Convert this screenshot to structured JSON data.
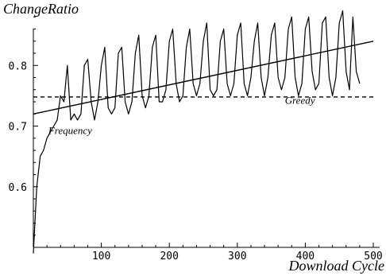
{
  "chart_data": {
    "type": "line",
    "ylabel": "ChangeRatio",
    "xlabel": "Download Cycle",
    "xlim": [
      0,
      500
    ],
    "ylim": [
      0.5,
      0.9
    ],
    "x_ticks": [
      100,
      200,
      300,
      400,
      500
    ],
    "y_ticks": [
      0.6,
      0.7,
      0.8
    ],
    "x_tick_labels": [
      "100",
      "200",
      "300",
      "400",
      "500"
    ],
    "y_tick_labels": [
      "0.6",
      "0.7",
      "0.8"
    ],
    "grid": false,
    "series": [
      {
        "name": "Frequency",
        "style": "solid",
        "color": "#000000",
        "sample_step": 5,
        "x_start": 0,
        "values": [
          0.49,
          0.6,
          0.65,
          0.66,
          0.68,
          0.69,
          0.7,
          0.71,
          0.75,
          0.74,
          0.8,
          0.71,
          0.72,
          0.71,
          0.72,
          0.8,
          0.81,
          0.74,
          0.71,
          0.74,
          0.8,
          0.83,
          0.73,
          0.72,
          0.73,
          0.82,
          0.83,
          0.74,
          0.72,
          0.74,
          0.82,
          0.85,
          0.75,
          0.73,
          0.75,
          0.83,
          0.85,
          0.74,
          0.74,
          0.76,
          0.84,
          0.86,
          0.77,
          0.74,
          0.75,
          0.83,
          0.86,
          0.77,
          0.75,
          0.77,
          0.84,
          0.87,
          0.76,
          0.75,
          0.76,
          0.84,
          0.86,
          0.77,
          0.75,
          0.77,
          0.85,
          0.87,
          0.77,
          0.75,
          0.78,
          0.84,
          0.87,
          0.78,
          0.75,
          0.78,
          0.85,
          0.87,
          0.78,
          0.76,
          0.78,
          0.86,
          0.88,
          0.78,
          0.75,
          0.77,
          0.86,
          0.88,
          0.79,
          0.76,
          0.77,
          0.87,
          0.88,
          0.78,
          0.75,
          0.78,
          0.87,
          0.89,
          0.79,
          0.76,
          0.88,
          0.79,
          0.77
        ]
      },
      {
        "name": "",
        "style": "solid",
        "color": "#000000",
        "x": [
          0,
          500
        ],
        "y": [
          0.72,
          0.84
        ]
      },
      {
        "name": "Greedy",
        "style": "dashed",
        "color": "#000000",
        "x": [
          0,
          500
        ],
        "y": [
          0.748,
          0.748
        ]
      }
    ],
    "annotations": [
      {
        "text": "Frequency",
        "x": 22,
        "y": 0.687
      },
      {
        "text": "Greedy",
        "x": 370,
        "y": 0.737
      }
    ]
  }
}
